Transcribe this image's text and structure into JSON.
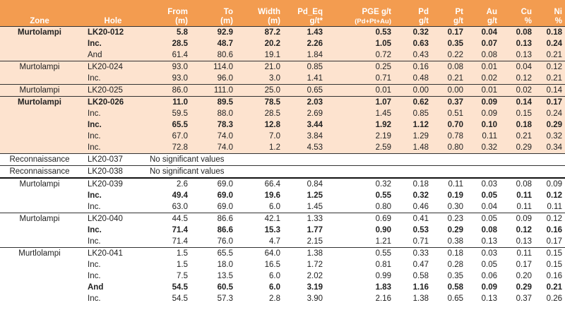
{
  "headers": {
    "zone": "Zone",
    "hole": "Hole",
    "from": [
      "From",
      "(m)"
    ],
    "to": [
      "To",
      "(m)"
    ],
    "width": [
      "Width",
      "(m)"
    ],
    "pdeq": [
      "Pd_Eq",
      "g/t*"
    ],
    "pge": [
      "PGE g/t",
      "(Pd+Pt+Au)"
    ],
    "pd": [
      "Pd",
      "g/t"
    ],
    "pt": [
      "Pt",
      "g/t"
    ],
    "au": [
      "Au",
      "g/t"
    ],
    "cu": [
      "Cu",
      "%"
    ],
    "ni": [
      "Ni",
      "%"
    ]
  },
  "rows": [
    {
      "zone": "Murtolampi",
      "hole": "LK20-012",
      "from": "5.8",
      "to": "92.9",
      "width": "87.2",
      "pdeq": "1.43",
      "pge": "0.53",
      "pd": "0.32",
      "pt": "0.17",
      "au": "0.04",
      "cu": "0.08",
      "ni": "0.18"
    },
    {
      "zone": "",
      "hole": "Inc.",
      "from": "28.5",
      "to": "48.7",
      "width": "20.2",
      "pdeq": "2.26",
      "pge": "1.05",
      "pd": "0.63",
      "pt": "0.35",
      "au": "0.07",
      "cu": "0.13",
      "ni": "0.24"
    },
    {
      "zone": "",
      "hole": "And",
      "from": "61.4",
      "to": "80.6",
      "width": "19.1",
      "pdeq": "1.84",
      "pge": "0.72",
      "pd": "0.43",
      "pt": "0.22",
      "au": "0.08",
      "cu": "0.13",
      "ni": "0.21"
    },
    {
      "zone": "Murtolampi",
      "hole": "LK20-024",
      "from": "93.0",
      "to": "114.0",
      "width": "21.0",
      "pdeq": "0.85",
      "pge": "0.25",
      "pd": "0.16",
      "pt": "0.08",
      "au": "0.01",
      "cu": "0.04",
      "ni": "0.12"
    },
    {
      "zone": "",
      "hole": "Inc.",
      "from": "93.0",
      "to": "96.0",
      "width": "3.0",
      "pdeq": "1.41",
      "pge": "0.71",
      "pd": "0.48",
      "pt": "0.21",
      "au": "0.02",
      "cu": "0.12",
      "ni": "0.21"
    },
    {
      "zone": "Murtolampi",
      "hole": "LK20-025",
      "from": "86.0",
      "to": "111.0",
      "width": "25.0",
      "pdeq": "0.65",
      "pge": "0.01",
      "pd": "0.00",
      "pt": "0.00",
      "au": "0.01",
      "cu": "0.02",
      "ni": "0.14"
    },
    {
      "zone": "Murtolampi",
      "hole": "LK20-026",
      "from": "11.0",
      "to": "89.5",
      "width": "78.5",
      "pdeq": "2.03",
      "pge": "1.07",
      "pd": "0.62",
      "pt": "0.37",
      "au": "0.09",
      "cu": "0.14",
      "ni": "0.17"
    },
    {
      "zone": "",
      "hole": "Inc.",
      "from": "59.5",
      "to": "88.0",
      "width": "28.5",
      "pdeq": "2.69",
      "pge": "1.45",
      "pd": "0.85",
      "pt": "0.51",
      "au": "0.09",
      "cu": "0.15",
      "ni": "0.24"
    },
    {
      "zone": "",
      "hole": "Inc.",
      "from": "65.5",
      "to": "78.3",
      "width": "12.8",
      "pdeq": "3.44",
      "pge": "1.92",
      "pd": "1.12",
      "pt": "0.70",
      "au": "0.10",
      "cu": "0.18",
      "ni": "0.29"
    },
    {
      "zone": "",
      "hole": "Inc.",
      "from": "67.0",
      "to": "74.0",
      "width": "7.0",
      "pdeq": "3.84",
      "pge": "2.19",
      "pd": "1.29",
      "pt": "0.78",
      "au": "0.11",
      "cu": "0.21",
      "ni": "0.32"
    },
    {
      "zone": "",
      "hole": "Inc.",
      "from": "72.8",
      "to": "74.0",
      "width": "1.2",
      "pdeq": "4.53",
      "pge": "2.59",
      "pd": "1.48",
      "pt": "0.80",
      "au": "0.32",
      "cu": "0.29",
      "ni": "0.34"
    },
    {
      "zone": "Reconnaissance",
      "hole": "LK20-037",
      "note": "No significant values"
    },
    {
      "zone": "Reconnaissance",
      "hole": "LK20-038",
      "note": "No significant values"
    },
    {
      "zone": "Murtolampi",
      "hole": "LK20-039",
      "from": "2.6",
      "to": "69.0",
      "width": "66.4",
      "pdeq": "0.84",
      "pge": "0.32",
      "pd": "0.18",
      "pt": "0.11",
      "au": "0.03",
      "cu": "0.08",
      "ni": "0.09"
    },
    {
      "zone": "",
      "hole": "Inc.",
      "from": "49.4",
      "to": "69.0",
      "width": "19.6",
      "pdeq": "1.25",
      "pge": "0.55",
      "pd": "0.32",
      "pt": "0.19",
      "au": "0.05",
      "cu": "0.11",
      "ni": "0.12"
    },
    {
      "zone": "",
      "hole": "Inc.",
      "from": "63.0",
      "to": "69.0",
      "width": "6.0",
      "pdeq": "1.45",
      "pge": "0.80",
      "pd": "0.46",
      "pt": "0.30",
      "au": "0.04",
      "cu": "0.11",
      "ni": "0.11"
    },
    {
      "zone": "Murtolampi",
      "hole": "LK20-040",
      "from": "44.5",
      "to": "86.6",
      "width": "42.1",
      "pdeq": "1.33",
      "pge": "0.69",
      "pd": "0.41",
      "pt": "0.23",
      "au": "0.05",
      "cu": "0.09",
      "ni": "0.12"
    },
    {
      "zone": "",
      "hole": "Inc.",
      "from": "71.4",
      "to": "86.6",
      "width": "15.3",
      "pdeq": "1.77",
      "pge": "0.90",
      "pd": "0.53",
      "pt": "0.29",
      "au": "0.08",
      "cu": "0.12",
      "ni": "0.16"
    },
    {
      "zone": "",
      "hole": "Inc.",
      "from": "71.4",
      "to": "76.0",
      "width": "4.7",
      "pdeq": "2.15",
      "pge": "1.21",
      "pd": "0.71",
      "pt": "0.38",
      "au": "0.13",
      "cu": "0.13",
      "ni": "0.17"
    },
    {
      "zone": "Murtlolampi",
      "hole": "LK20-041",
      "from": "1.5",
      "to": "65.5",
      "width": "64.0",
      "pdeq": "1.38",
      "pge": "0.55",
      "pd": "0.33",
      "pt": "0.18",
      "au": "0.03",
      "cu": "0.11",
      "ni": "0.15"
    },
    {
      "zone": "",
      "hole": "Inc.",
      "from": "1.5",
      "to": "18.0",
      "width": "16.5",
      "pdeq": "1.72",
      "pge": "0.81",
      "pd": "0.47",
      "pt": "0.28",
      "au": "0.05",
      "cu": "0.17",
      "ni": "0.15"
    },
    {
      "zone": "",
      "hole": "Inc.",
      "from": "7.5",
      "to": "13.5",
      "width": "6.0",
      "pdeq": "2.02",
      "pge": "0.99",
      "pd": "0.58",
      "pt": "0.35",
      "au": "0.06",
      "cu": "0.20",
      "ni": "0.16"
    },
    {
      "zone": "",
      "hole": "And",
      "from": "54.5",
      "to": "60.5",
      "width": "6.0",
      "pdeq": "3.19",
      "pge": "1.83",
      "pd": "1.16",
      "pt": "0.58",
      "au": "0.09",
      "cu": "0.29",
      "ni": "0.21"
    },
    {
      "zone": "",
      "hole": "Inc.",
      "from": "54.5",
      "to": "57.3",
      "width": "2.8",
      "pdeq": "3.90",
      "pge": "2.16",
      "pd": "1.38",
      "pt": "0.65",
      "au": "0.13",
      "cu": "0.37",
      "ni": "0.26"
    }
  ]
}
